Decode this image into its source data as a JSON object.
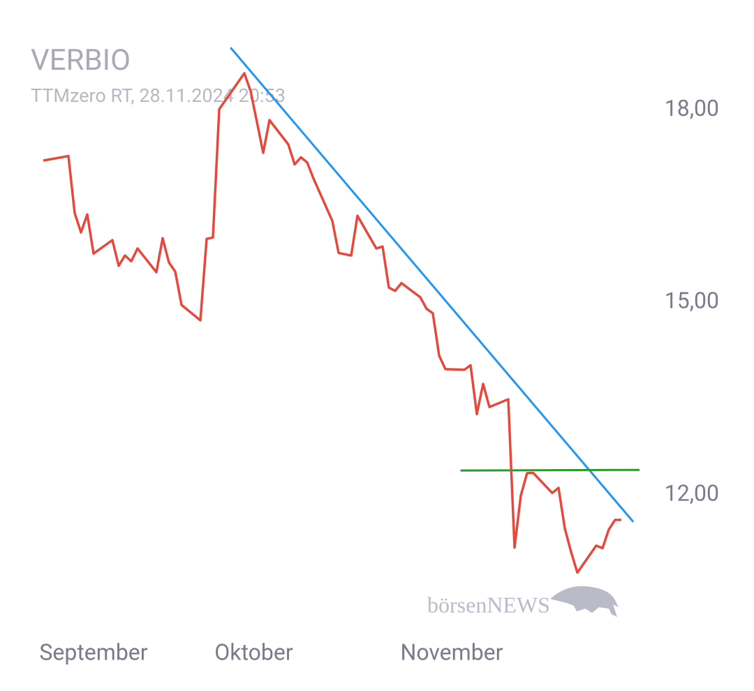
{
  "chart_data": {
    "type": "line",
    "title": "VERBIO",
    "subtitle": "TTMzero RT, 28.11.2024 20:53",
    "watermark": "börsenNEWS",
    "x": [
      0,
      4,
      5,
      6,
      7,
      8,
      11,
      12,
      13,
      14,
      15,
      18,
      19,
      20,
      21,
      22,
      25,
      26,
      27,
      28,
      32,
      33,
      35,
      36,
      39,
      40,
      41,
      42,
      43,
      46,
      47,
      49,
      50,
      53,
      54,
      55,
      56,
      57,
      60,
      61,
      62,
      63,
      64,
      67,
      68,
      69,
      70,
      71,
      74,
      75,
      76,
      77,
      78,
      81,
      82,
      83,
      84,
      85,
      88,
      89,
      90,
      91,
      92
    ],
    "series": [
      {
        "color": "#e8473b",
        "values": [
          17.21,
          17.28,
          16.39,
          16.09,
          16.37,
          15.76,
          15.97,
          15.57,
          15.73,
          15.64,
          15.84,
          15.47,
          16.0,
          15.62,
          15.48,
          14.96,
          14.72,
          15.99,
          16.01,
          18.01,
          18.57,
          18.29,
          17.33,
          17.84,
          17.46,
          17.15,
          17.26,
          17.18,
          16.93,
          16.27,
          15.77,
          15.73,
          16.35,
          15.84,
          15.87,
          15.23,
          15.18,
          15.3,
          15.08,
          14.9,
          14.83,
          14.17,
          13.96,
          13.95,
          14.02,
          13.26,
          13.73,
          13.37,
          13.49,
          11.18,
          11.99,
          12.34,
          12.34,
          12.03,
          12.11,
          11.48,
          11.11,
          10.79,
          11.21,
          11.17,
          11.46,
          11.61,
          11.61
        ]
      }
    ],
    "trendlines": [
      {
        "color": "#2196f3",
        "x": [
          29.8,
          93.9
        ],
        "values": [
          18.97,
          11.58
        ]
      },
      {
        "color": "#2a9a2a",
        "x": [
          66.4,
          94.9
        ],
        "values": [
          12.38,
          12.39
        ]
      }
    ],
    "xlim": [
      0,
      92
    ],
    "xticks": [
      {
        "value": 8,
        "label": "September"
      },
      {
        "value": 33.5,
        "label": "Oktober"
      },
      {
        "value": 65,
        "label": "November"
      }
    ],
    "ylim": [
      10.5,
      19.2
    ],
    "yticks": [
      {
        "value": 12,
        "label": "12,00"
      },
      {
        "value": 15,
        "label": "15,00"
      },
      {
        "value": 18,
        "label": "18,00"
      }
    ],
    "grid": false
  }
}
